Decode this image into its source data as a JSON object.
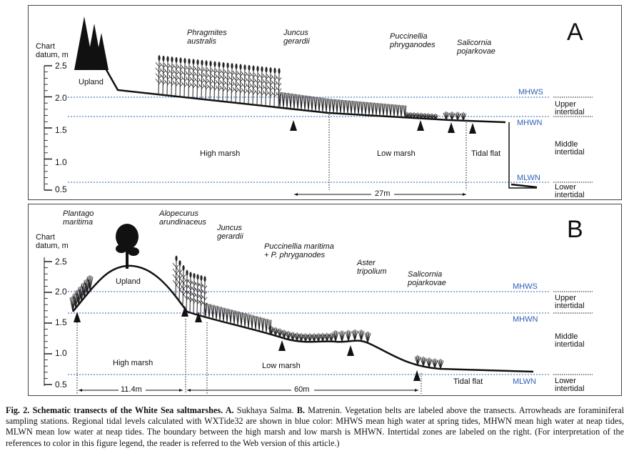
{
  "panels": [
    {
      "letter": "A",
      "axis_title": [
        "Chart",
        "datum, m"
      ],
      "ticks": [
        "2.5",
        "2.0",
        "1.5",
        "1.0",
        "0.5"
      ],
      "species": [
        {
          "lines": [
            "Phragmites",
            "australis"
          ]
        },
        {
          "lines": [
            "Juncus",
            "gerardii"
          ]
        },
        {
          "lines": [
            "Puccinellia",
            "phryganodes"
          ]
        },
        {
          "lines": [
            "Salicornia",
            "pojarkovae"
          ]
        }
      ],
      "zones": [
        "Upland",
        "High marsh",
        "Low marsh",
        "Tidal flat"
      ],
      "tide_levels": [
        "MHWS",
        "MHWN",
        "MLWN"
      ],
      "intertidal": [
        [
          "Upper",
          "intertidal"
        ],
        [
          "Middle",
          "intertidal"
        ],
        [
          "Lower",
          "intertidal"
        ]
      ],
      "distances": [
        "27m"
      ]
    },
    {
      "letter": "B",
      "axis_title": [
        "Chart",
        "datum, m"
      ],
      "ticks": [
        "2.5",
        "2.0",
        "1.5",
        "1.0",
        "0.5"
      ],
      "species": [
        {
          "lines": [
            "Plantago",
            "maritima"
          ]
        },
        {
          "lines": [
            "Alopecurus",
            "arundinaceus"
          ]
        },
        {
          "lines": [
            "Juncus",
            "gerardii"
          ]
        },
        {
          "lines": [
            "Puccinellia maritima",
            "+ P. phryganodes"
          ]
        },
        {
          "lines": [
            "Aster",
            "tripolium"
          ]
        },
        {
          "lines": [
            "Salicornia",
            "pojarkovae"
          ]
        }
      ],
      "zones": [
        "Upland",
        "High marsh",
        "Low marsh",
        "Tidal flat"
      ],
      "tide_levels": [
        "MHWS",
        "MHWN",
        "MLWN"
      ],
      "intertidal": [
        [
          "Upper",
          "intertidal"
        ],
        [
          "Middle",
          "intertidal"
        ],
        [
          "Lower",
          "intertidal"
        ]
      ],
      "distances": [
        "11.4m",
        "60m"
      ]
    }
  ],
  "caption": {
    "label": "Fig. 2. Schematic transects of the White Sea saltmarshes. A.",
    "part_a": " Sukhaya Salma. ",
    "label_b": "B.",
    "rest": " Matrenin. Vegetation belts are labeled above the transects. Arrowheads are foraminiferal sampling stations. Regional tidal levels calculated with WXTide32 are shown in blue color: MHWS mean high water at spring tides, MHWN mean high water at neap tides, MLWN mean low water at neap tides. The boundary between the high marsh and low marsh is MHWN. Intertidal zones are labeled on the right. (For interpretation of the references to color in this figure legend, the reader is referred to the Web version of this article.)"
  },
  "colors": {
    "tide_line": "#2f5fb8",
    "ink": "#111111"
  }
}
